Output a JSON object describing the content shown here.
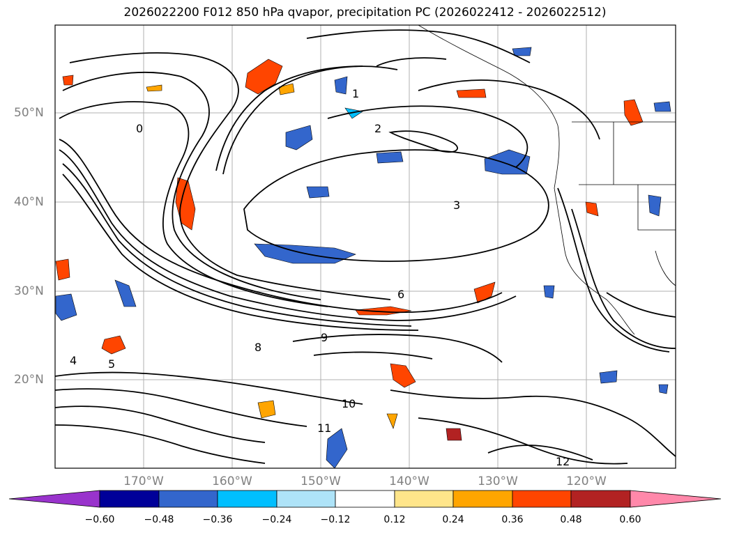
{
  "title": "2026022200 F012 850 hPa qvapor, precipitation PC (2026022412 - 2026022512)",
  "lat_labels": [
    "50°N",
    "40°N",
    "30°N",
    "20°N"
  ],
  "lon_labels": [
    "170°W",
    "160°W",
    "150°W",
    "140°W",
    "130°W",
    "120°W"
  ],
  "colorbar": {
    "ticks": [
      "−0.60",
      "−0.48",
      "−0.36",
      "−0.24",
      "−0.12",
      "0.12",
      "0.24",
      "0.36",
      "0.48",
      "0.60"
    ],
    "colors": [
      "#9933cc",
      "#000099",
      "#3366cc",
      "#00bfff",
      "#aee3f8",
      "#ffffff",
      "#ffe58a",
      "#ffa500",
      "#ff4500",
      "#b22222",
      "#ff88aa"
    ]
  },
  "contour_labels": [
    "0",
    "1",
    "2",
    "3",
    "4",
    "5",
    "6",
    "8",
    "9",
    "10",
    "11",
    "12"
  ]
}
